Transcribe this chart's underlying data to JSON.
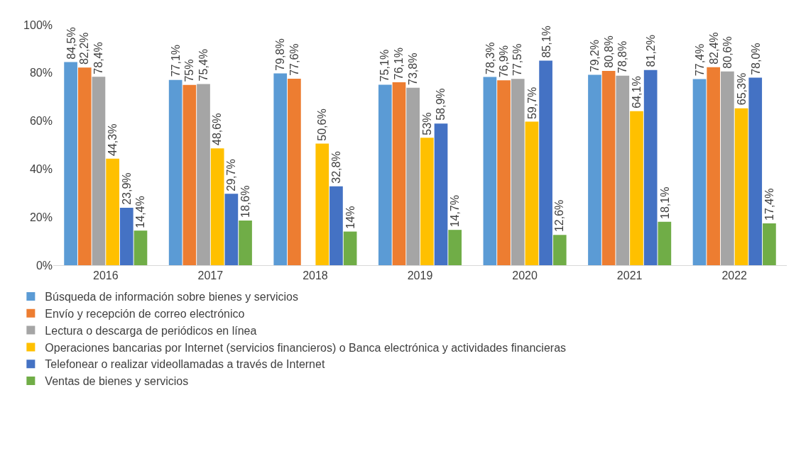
{
  "chart_data": {
    "type": "bar",
    "categories": [
      "2016",
      "2017",
      "2018",
      "2019",
      "2020",
      "2021",
      "2022"
    ],
    "series": [
      {
        "name": "Búsqueda de información sobre bienes y servicios",
        "color": "#5b9bd5",
        "values": [
          84.5,
          77.1,
          79.8,
          75.1,
          78.3,
          79.2,
          77.4
        ],
        "value_labels": [
          "84,5%",
          "77,1%",
          "79,8%",
          "75,1%",
          "78,3%",
          "79,2%",
          "77,4%"
        ]
      },
      {
        "name": "Envío y recepción de correo electrónico",
        "color": "#ed7d31",
        "values": [
          82.2,
          75,
          77.6,
          76.1,
          76.9,
          80.8,
          82.4
        ],
        "value_labels": [
          "82,2%",
          "75%",
          "77,6%",
          "76,1%",
          "76,9%",
          "80,8%",
          "82,4%"
        ]
      },
      {
        "name": "Lectura o descarga de periódicos en línea",
        "color": "#a5a5a5",
        "values": [
          78.4,
          75.4,
          null,
          73.8,
          77.5,
          78.8,
          80.6
        ],
        "value_labels": [
          "78,4%",
          "75,4%",
          null,
          "73,8%",
          "77,5%",
          "78,8%",
          "80,6%"
        ]
      },
      {
        "name": "Operaciones bancarias por Internet (servicios financieros) o Banca electrónica y actividades financieras",
        "color": "#ffc000",
        "values": [
          44.3,
          48.6,
          50.6,
          53,
          59.7,
          64.1,
          65.3
        ],
        "value_labels": [
          "44,3%",
          "48,6%",
          "50,6%",
          "53%",
          "59,7%",
          "64,1%",
          "65,3%"
        ]
      },
      {
        "name": "Telefonear o realizar videollamadas a través de Internet",
        "color": "#4472c4",
        "values": [
          23.9,
          29.7,
          32.8,
          58.9,
          85.1,
          81.2,
          78.0
        ],
        "value_labels": [
          "23,9%",
          "29,7%",
          "32,8%",
          "58,9%",
          "85,1%",
          "81,2%",
          "78,0%"
        ]
      },
      {
        "name": "Ventas de bienes y servicios",
        "color": "#70ad47",
        "values": [
          14.4,
          18.6,
          14,
          14.7,
          12.6,
          18.1,
          17.4
        ],
        "value_labels": [
          "14,4%",
          "18,6%",
          "14%",
          "14,7%",
          "12,6%",
          "18,1%",
          "17,4%"
        ]
      }
    ],
    "ylim": [
      0,
      100
    ],
    "yticks": [
      {
        "value": 0,
        "label": "0%"
      },
      {
        "value": 20,
        "label": "20%"
      },
      {
        "value": 40,
        "label": "40%"
      },
      {
        "value": 60,
        "label": "60%"
      },
      {
        "value": 80,
        "label": "80%"
      },
      {
        "value": 100,
        "label": "100%"
      }
    ],
    "grid": false,
    "legend": "bottom"
  }
}
